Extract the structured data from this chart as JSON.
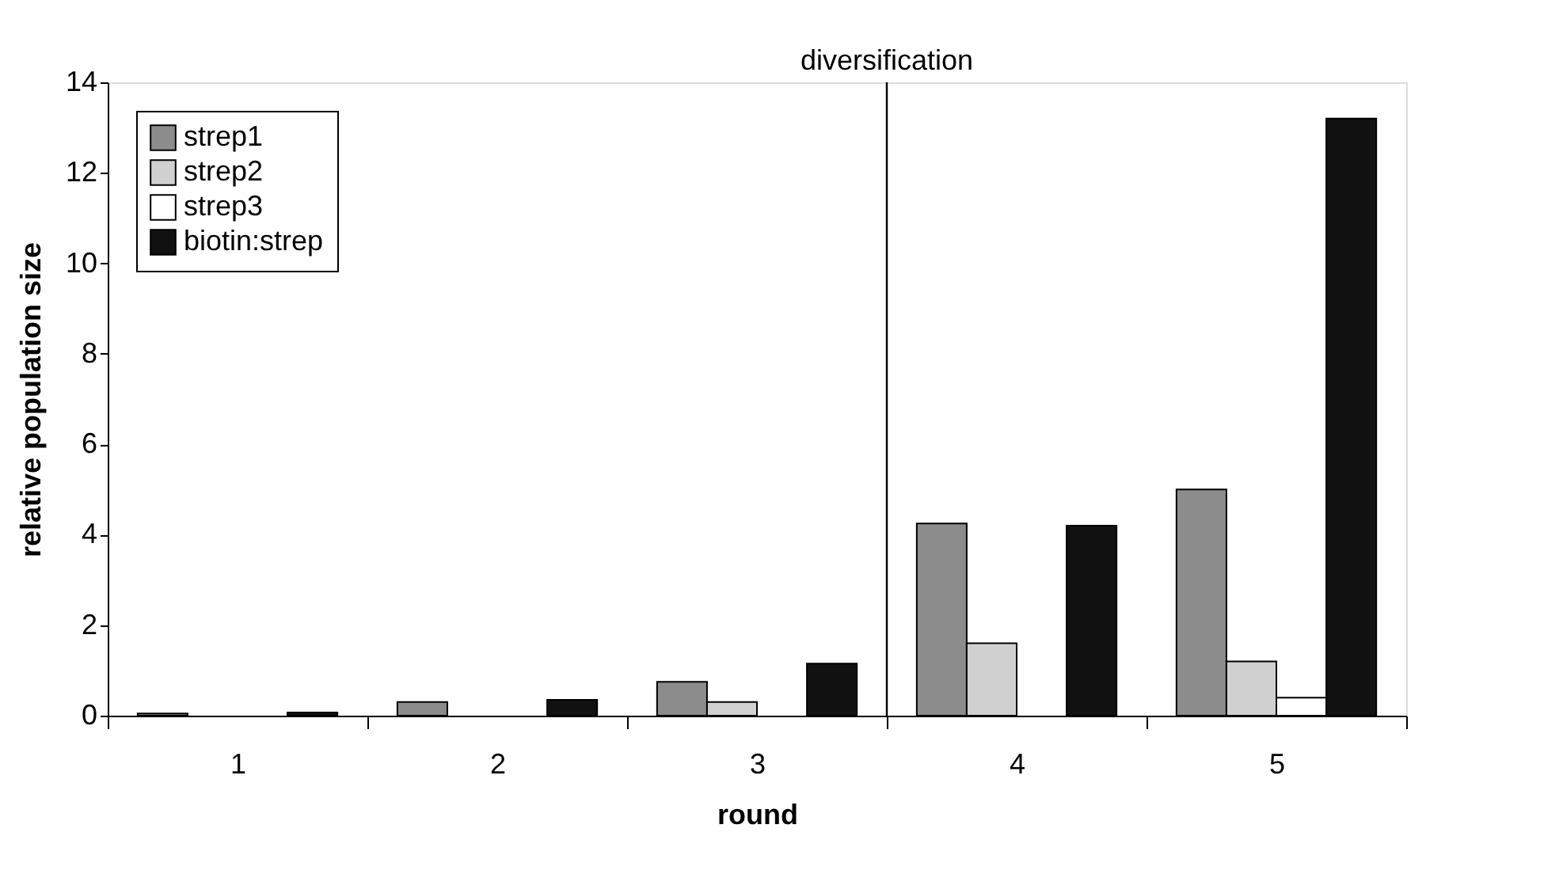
{
  "chart_data": {
    "type": "bar",
    "xlabel": "round",
    "ylabel": "relative population size",
    "categories": [
      "1",
      "2",
      "3",
      "4",
      "5"
    ],
    "series": [
      {
        "name": "strep1",
        "color": "#8c8c8c",
        "values": [
          0.05,
          0.3,
          0.75,
          4.25,
          5.0
        ]
      },
      {
        "name": "strep2",
        "color": "#d0d0d0",
        "values": [
          null,
          null,
          0.3,
          1.6,
          1.2
        ]
      },
      {
        "name": "strep3",
        "color": "#ffffff",
        "values": [
          null,
          null,
          null,
          null,
          0.4
        ]
      },
      {
        "name": "biotin:strep",
        "color": "#111111",
        "values": [
          0.07,
          0.35,
          1.15,
          4.2,
          13.2
        ]
      }
    ],
    "ylim": [
      0,
      14
    ],
    "yticks": [
      0,
      2,
      4,
      6,
      8,
      10,
      12,
      14
    ],
    "annotations": [
      "diversification"
    ],
    "grid": false,
    "legend": "top left"
  }
}
